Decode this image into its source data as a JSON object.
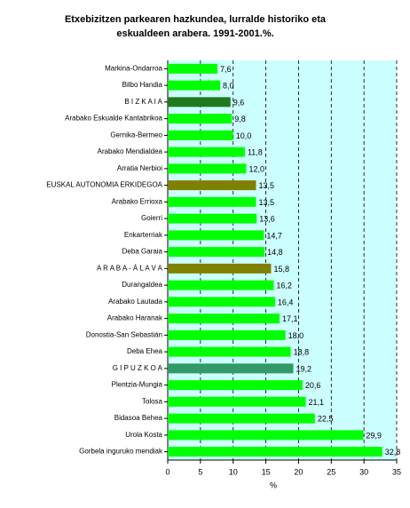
{
  "chart_data": {
    "type": "bar",
    "orientation": "horizontal",
    "title": "Etxebizitzen parkearen hazkundea, lurralde historiko eta eskualdeen arabera. 1991-2001.%.",
    "xlabel": "%",
    "categories": [
      "Markina-Ondarroa",
      "Bilbo Handia",
      "B I Z K A I A",
      "Arabako Eskualde Kantabrikoa",
      "Gernika-Bermeo",
      "Arabako Mendialdea",
      "Arratia Nerbioi",
      "EUSKAL AUTONOMIA ERKIDEGOA",
      "Arabako Errioxa",
      "Goierri",
      "Enkarterriak",
      "Deba Garaia",
      "A R A B A - Á L A V A",
      "Durangaldea",
      "Arabako Lautada",
      "Arabako Haranak",
      "Donostia-San Sebastián",
      "Deba Ehea",
      "G I P U Z K O A",
      "Plentzia-Mungia",
      "Tolosa",
      "Bidasoa Behea",
      "Urola Kosta",
      "Gorbela inguruko mendiak"
    ],
    "values": [
      7.6,
      8.0,
      9.6,
      9.8,
      10.0,
      11.8,
      12.0,
      13.5,
      13.5,
      13.6,
      14.7,
      14.8,
      15.8,
      16.2,
      16.4,
      17.1,
      18.0,
      18.8,
      19.2,
      20.6,
      21.1,
      22.5,
      29.9,
      32.8
    ],
    "value_labels": [
      "7,6",
      "8,0",
      "9,6",
      "9,8",
      "10,0",
      "11,8",
      "12,0",
      "13,5",
      "13,5",
      "13,6",
      "14,7",
      "14,8",
      "15,8",
      "16,2",
      "16,4",
      "17,1",
      "18,0",
      "18,8",
      "19,2",
      "20,6",
      "21,1",
      "22,5",
      "29,9",
      "32,8"
    ],
    "colors": [
      "#00ff00",
      "#00ff00",
      "#1f7a1f",
      "#00ff00",
      "#00ff00",
      "#00ff00",
      "#00ff00",
      "#808000",
      "#00ff00",
      "#00ff00",
      "#00ff00",
      "#00ff00",
      "#808000",
      "#00ff00",
      "#00ff00",
      "#00ff00",
      "#00ff00",
      "#00ff00",
      "#339966",
      "#00ff00",
      "#00ff00",
      "#00ff00",
      "#00ff00",
      "#00ff00"
    ],
    "xlim": [
      0,
      35
    ],
    "xticks": [
      0,
      5,
      10,
      15,
      20,
      25,
      30,
      35
    ],
    "grid": true
  }
}
